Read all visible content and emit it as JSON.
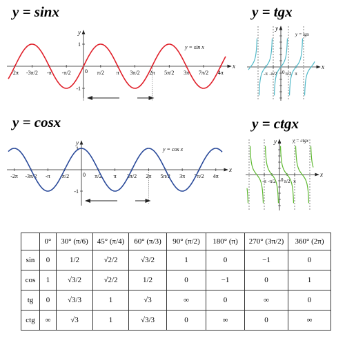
{
  "panels": [
    {
      "title": "y = sinx",
      "x_label": "x",
      "y_label": "y",
      "curve_label": "y = sin x",
      "x_ticks": [
        "-2π",
        "-3π/2",
        "-π",
        "-π/2",
        "π/2",
        "π",
        "3π/2",
        "2π",
        "5π/2",
        "3π",
        "7π/2",
        "4π"
      ],
      "y_ticks": [
        "1",
        "-1"
      ],
      "origin_label": "0"
    },
    {
      "title": "y = cosx",
      "x_label": "x",
      "y_label": "y",
      "curve_label": "y = cos x",
      "x_ticks": [
        "-2π",
        "-3π/2",
        "-π",
        "-π/2",
        "π/2",
        "π",
        "3π/2",
        "2π",
        "5π/2",
        "3π",
        "7π/2",
        "4π"
      ],
      "y_ticks": [
        "1",
        "-1"
      ],
      "origin_label": "0"
    },
    {
      "title": "y = tgx",
      "x_label": "x",
      "y_label": "y",
      "curve_label": "y = tgx",
      "x_ticks": [
        "-π",
        "-π/2",
        "π/2",
        "π"
      ],
      "y_ticks": [],
      "origin_label": "0"
    },
    {
      "title": "y = ctgx",
      "x_label": "x",
      "y_label": "y",
      "curve_label": "y = ctgx",
      "x_ticks": [
        "-π",
        "-π/2",
        "π/2",
        "π"
      ],
      "y_ticks": [],
      "origin_label": "0"
    }
  ],
  "table": {
    "header": [
      "0°",
      "30° (π/6)",
      "45° (π/4)",
      "60° (π/3)",
      "90° (π/2)",
      "180° (π)",
      "270° (3π/2)",
      "360° (2π)"
    ],
    "rows": [
      {
        "label": "sin",
        "cells": [
          "0",
          "1/2",
          "√2/2",
          "√3/2",
          "1",
          "0",
          "−1",
          "0"
        ]
      },
      {
        "label": "cos",
        "cells": [
          "1",
          "√3/2",
          "√2/2",
          "1/2",
          "0",
          "−1",
          "0",
          "1"
        ]
      },
      {
        "label": "tg",
        "cells": [
          "0",
          "√3/3",
          "1",
          "√3",
          "∞",
          "0",
          "∞",
          "0"
        ]
      },
      {
        "label": "ctg",
        "cells": [
          "∞",
          "√3",
          "1",
          "√3/3",
          "0",
          "∞",
          "0",
          "∞"
        ]
      }
    ]
  }
}
